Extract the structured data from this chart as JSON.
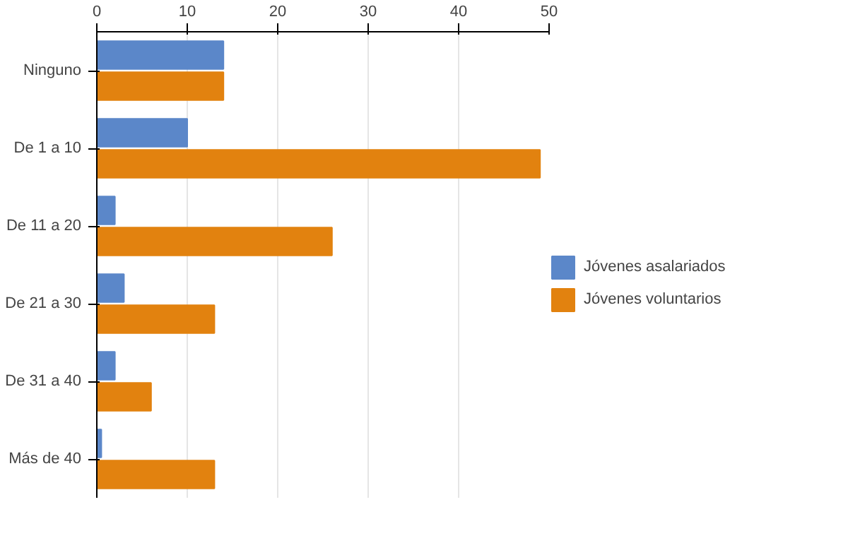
{
  "chart_data": {
    "type": "bar",
    "orientation": "horizontal",
    "categories": [
      "Ninguno",
      "De 1 a 10",
      "De 11 a 20",
      "De 21 a 30",
      "De 31 a 40",
      "Más de 40"
    ],
    "series": [
      {
        "name": "Jóvenes asalariados",
        "color": "#5b87c9",
        "values": [
          14,
          10,
          2,
          3,
          2,
          0.5
        ]
      },
      {
        "name": "Jóvenes voluntarios",
        "color": "#e2820f",
        "values": [
          14,
          49,
          26,
          13,
          6,
          13
        ]
      }
    ],
    "xlim": [
      0,
      50
    ],
    "xticks": [
      0,
      10,
      20,
      30,
      40,
      50
    ],
    "grid": "x",
    "legend": "right"
  }
}
